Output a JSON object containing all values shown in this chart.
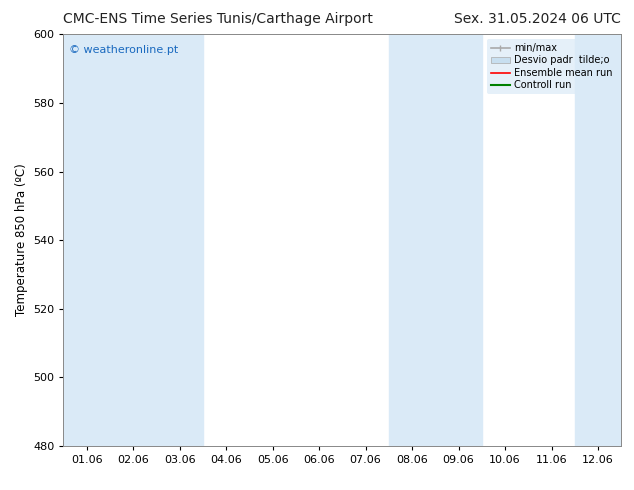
{
  "title_left": "CMC-ENS Time Series Tunis/Carthage Airport",
  "title_right": "Sex. 31.05.2024 06 UTC",
  "ylabel": "Temperature 850 hPa (ºC)",
  "watermark": "© weatheronline.pt",
  "watermark_color": "#1a6abf",
  "ylim": [
    480,
    600
  ],
  "yticks": [
    480,
    500,
    520,
    540,
    560,
    580,
    600
  ],
  "x_labels": [
    "01.06",
    "02.06",
    "03.06",
    "04.06",
    "05.06",
    "06.06",
    "07.06",
    "08.06",
    "09.06",
    "10.06",
    "11.06",
    "12.06"
  ],
  "bg_color": "#ffffff",
  "plot_bg_color": "#ffffff",
  "band_color": "#daeaf7",
  "band_positions": [
    0,
    1,
    2,
    7,
    8,
    11
  ],
  "legend_entries": [
    {
      "label": "min/max",
      "color": "#aaaaaa",
      "lw": 1.2
    },
    {
      "label": "Desvio padr  tilde;o",
      "color": "#c8dff0",
      "lw": 8
    },
    {
      "label": "Ensemble mean run",
      "color": "#ff0000",
      "lw": 1.2
    },
    {
      "label": "Controll run",
      "color": "#008000",
      "lw": 1.5
    }
  ],
  "title_fontsize": 10,
  "axis_fontsize": 8.5,
  "tick_fontsize": 8,
  "figure_bg": "#ffffff"
}
